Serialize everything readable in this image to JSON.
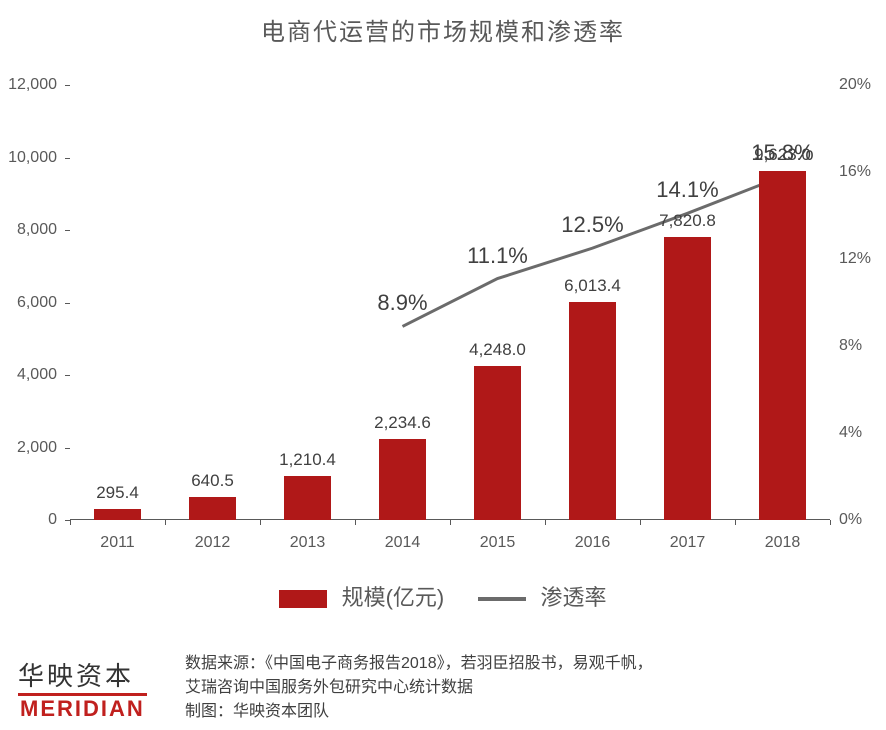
{
  "title": "电商代运营的市场规模和渗透率",
  "chart": {
    "type": "bar+line",
    "categories": [
      "2011",
      "2012",
      "2013",
      "2014",
      "2015",
      "2016",
      "2017",
      "2018"
    ],
    "bars": {
      "label": "规模(亿元)",
      "values": [
        295.4,
        640.5,
        1210.4,
        2234.6,
        4248.0,
        6013.4,
        7820.8,
        9623.0
      ],
      "value_labels": [
        "295.4",
        "640.5",
        "1,210.4",
        "2,234.6",
        "4,248.0",
        "6,013.4",
        "7,820.8",
        "9,623.0"
      ],
      "color": "#b01818",
      "bar_width_frac": 0.5
    },
    "line": {
      "label": "渗透率",
      "values": [
        null,
        null,
        null,
        8.9,
        11.1,
        12.5,
        14.1,
        15.8
      ],
      "value_labels": [
        null,
        null,
        null,
        "8.9%",
        "11.1%",
        "12.5%",
        "14.1%",
        "15.8%"
      ],
      "color": "#6b6b6b",
      "line_width": 3
    },
    "y_left": {
      "min": 0,
      "max": 12000,
      "step": 2000,
      "ticks": [
        "0",
        "2,000",
        "4,000",
        "6,000",
        "8,000",
        "10,000",
        "12,000"
      ]
    },
    "y_right": {
      "min": 0,
      "max": 20,
      "step": 4,
      "ticks": [
        "0%",
        "4%",
        "8%",
        "12%",
        "16%",
        "20%"
      ]
    },
    "background": "#ffffff",
    "axis_color": "#595959",
    "text_color": "#595959",
    "title_fontsize": 24,
    "tick_fontsize": 16,
    "bar_label_fontsize": 17,
    "line_label_fontsize": 22
  },
  "legend": {
    "items": [
      {
        "kind": "swatch",
        "color": "#b01818",
        "text": "规模(亿元)"
      },
      {
        "kind": "line",
        "color": "#6b6b6b",
        "text": "渗透率"
      }
    ]
  },
  "footer": {
    "logo_cn": "华映资本",
    "logo_en": "MERIDIAN",
    "source_line1": "数据来源：《中国电子商务报告2018》，若羽臣招股书，易观千帆，",
    "source_line2": "艾瑞咨询中国服务外包研究中心统计数据",
    "source_line3": "制图：华映资本团队"
  }
}
